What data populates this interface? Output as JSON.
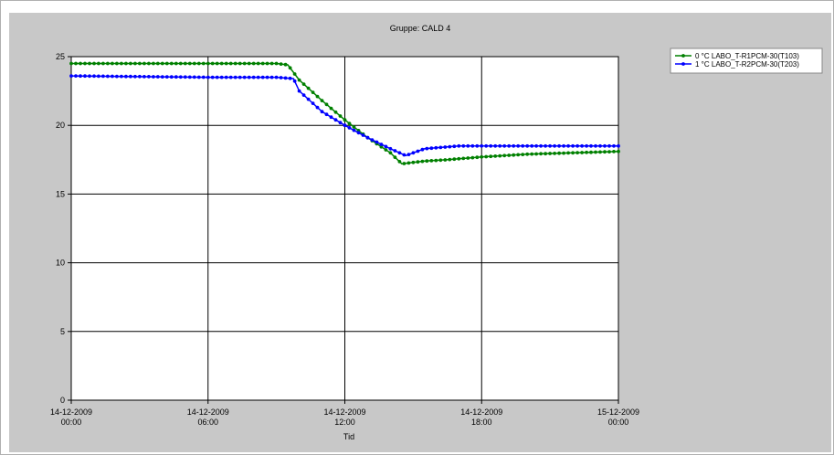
{
  "chart_data": {
    "type": "line",
    "title": "Gruppe: CALD 4",
    "xlabel": "Tid",
    "ylabel": "",
    "ylim": [
      0,
      25
    ],
    "xlim_hours": [
      0,
      24
    ],
    "yticks": [
      "0",
      "5",
      "10",
      "15",
      "20",
      "25"
    ],
    "xticks": [
      {
        "date": "14-12-2009",
        "time": "00:00"
      },
      {
        "date": "14-12-2009",
        "time": "06:00"
      },
      {
        "date": "14-12-2009",
        "time": "12:00"
      },
      {
        "date": "14-12-2009",
        "time": "18:00"
      },
      {
        "date": "15-12-2009",
        "time": "00:00"
      }
    ],
    "grid": true,
    "legend_position": "top-right",
    "series": [
      {
        "name": "0 °C LABO_T-R1PCM-30(T103)",
        "color": "#008000",
        "points": [
          [
            "00:00",
            24.5
          ],
          [
            "06:00",
            24.5
          ],
          [
            "09:00",
            24.5
          ],
          [
            "09:30",
            24.4
          ],
          [
            "10:00",
            23.3
          ],
          [
            "11:00",
            21.8
          ],
          [
            "12:00",
            20.4
          ],
          [
            "13:00",
            19.1
          ],
          [
            "14:00",
            18.0
          ],
          [
            "14:30",
            17.2
          ],
          [
            "15:30",
            17.4
          ],
          [
            "16:30",
            17.5
          ],
          [
            "18:00",
            17.7
          ],
          [
            "20:00",
            17.9
          ],
          [
            "22:00",
            18.0
          ],
          [
            "24:00",
            18.1
          ]
        ]
      },
      {
        "name": "1 °C LABO_T-R2PCM-30(T203)",
        "color": "#0000ff",
        "points": [
          [
            "00:00",
            23.6
          ],
          [
            "06:00",
            23.5
          ],
          [
            "09:00",
            23.5
          ],
          [
            "09:45",
            23.4
          ],
          [
            "10:00",
            22.5
          ],
          [
            "11:00",
            21.0
          ],
          [
            "12:00",
            20.0
          ],
          [
            "13:00",
            19.1
          ],
          [
            "14:00",
            18.3
          ],
          [
            "14:40",
            17.8
          ],
          [
            "15:30",
            18.3
          ],
          [
            "17:00",
            18.5
          ],
          [
            "18:00",
            18.5
          ],
          [
            "20:00",
            18.5
          ],
          [
            "22:00",
            18.5
          ],
          [
            "24:00",
            18.5
          ]
        ]
      }
    ]
  }
}
